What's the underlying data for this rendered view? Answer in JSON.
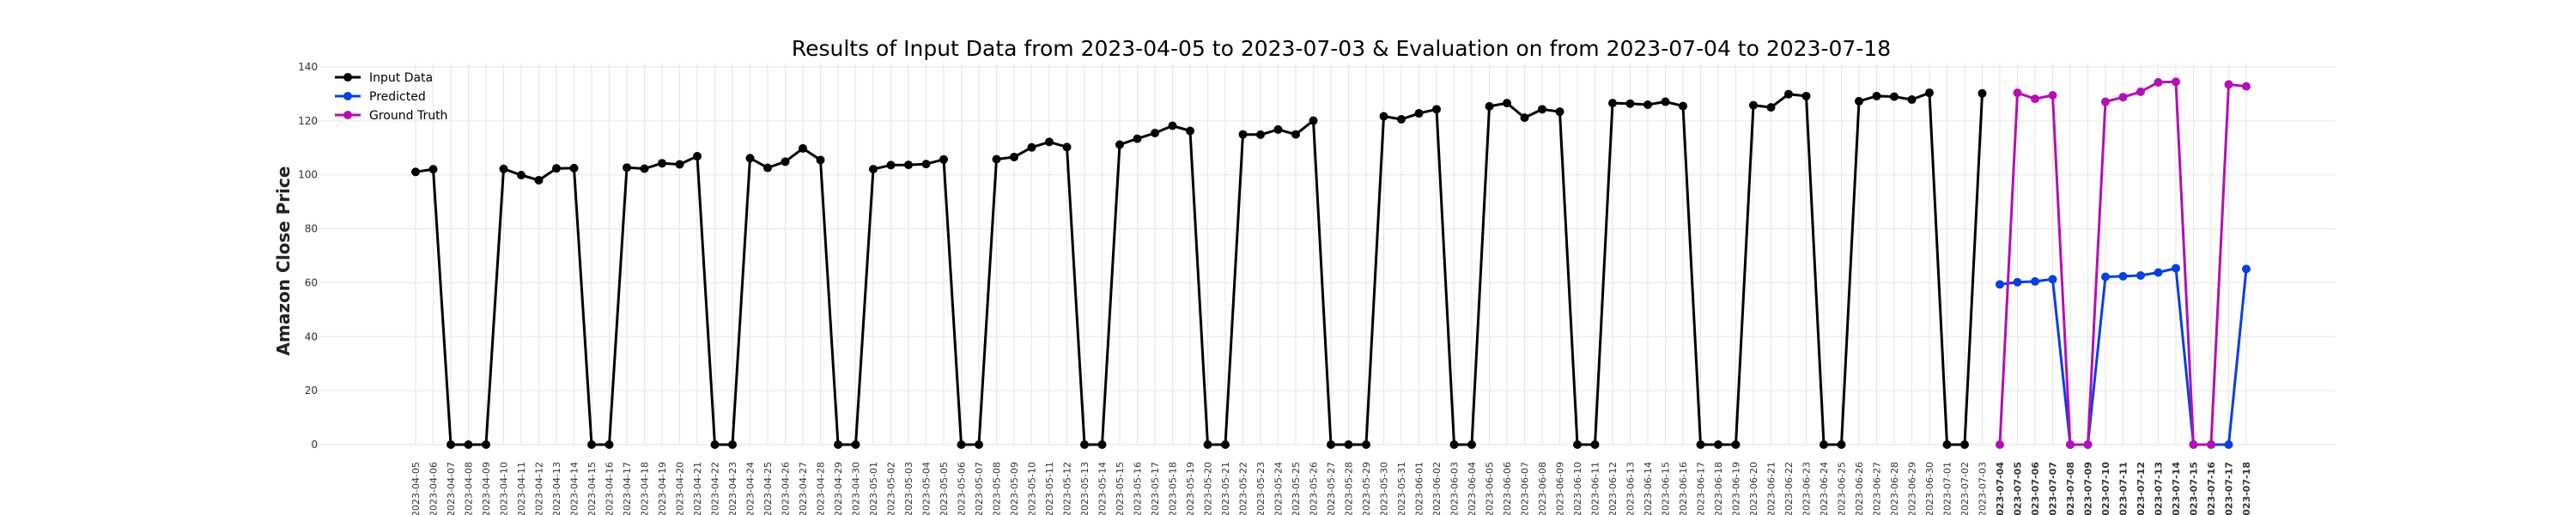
{
  "chart_data": {
    "type": "line",
    "title": "Results of Input Data from 2023-04-05 to 2023-07-03 & Evaluation on from 2023-07-04 to 2023-07-18",
    "xlabel": "",
    "ylabel": "Amazon Close Price",
    "ylim": [
      0,
      140
    ],
    "yticks": [
      0,
      20,
      40,
      60,
      80,
      100,
      120,
      140
    ],
    "grid": true,
    "legend_position": "top-left",
    "x_start": "2023-04-05",
    "tick_labels": [
      "2023-04-05",
      "2023-04-06",
      "2023-04-07",
      "2023-04-08",
      "2023-04-09",
      "2023-04-10",
      "2023-04-11",
      "2023-04-12",
      "2023-04-13",
      "2023-04-14",
      "2023-04-15",
      "2023-04-16",
      "2023-04-17",
      "2023-04-18",
      "2023-04-19",
      "2023-04-20",
      "2023-04-21",
      "2023-04-22",
      "2023-04-23",
      "2023-04-24",
      "2023-04-25",
      "2023-04-26",
      "2023-04-27",
      "2023-04-28",
      "2023-04-29",
      "2023-04-30",
      "2023-05-01",
      "2023-05-02",
      "2023-05-03",
      "2023-05-04",
      "2023-05-05",
      "2023-05-06",
      "2023-05-07",
      "2023-05-08",
      "2023-05-09",
      "2023-05-10",
      "2023-05-11",
      "2023-05-12",
      "2023-05-13",
      "2023-05-14",
      "2023-05-15",
      "2023-05-16",
      "2023-05-17",
      "2023-05-18",
      "2023-05-19",
      "2023-05-20",
      "2023-05-21",
      "2023-05-22",
      "2023-05-23",
      "2023-05-24",
      "2023-05-25",
      "2023-05-26",
      "2023-05-27",
      "2023-05-28",
      "2023-05-29",
      "2023-05-30",
      "2023-05-31",
      "2023-06-01",
      "2023-06-02",
      "2023-06-03",
      "2023-06-04",
      "2023-06-05",
      "2023-06-06",
      "2023-06-07",
      "2023-06-08",
      "2023-06-09",
      "2023-06-10",
      "2023-06-11",
      "2023-06-12",
      "2023-06-13",
      "2023-06-14",
      "2023-06-15",
      "2023-06-16",
      "2023-06-17",
      "2023-06-18",
      "2023-06-19",
      "2023-06-20",
      "2023-06-21",
      "2023-06-22",
      "2023-06-23",
      "2023-06-24",
      "2023-06-25",
      "2023-06-26",
      "2023-06-27",
      "2023-06-28",
      "2023-06-29",
      "2023-06-30",
      "2023-07-01",
      "2023-07-02",
      "2023-07-03",
      "2023-07-04",
      "2023-07-05",
      "2023-07-06",
      "2023-07-07",
      "2023-07-08",
      "2023-07-09",
      "2023-07-10",
      "2023-07-11",
      "2023-07-12",
      "2023-07-13",
      "2023-07-14",
      "2023-07-15",
      "2023-07-16",
      "2023-07-17",
      "2023-07-18"
    ],
    "bold_ticks_from": "2023-07-04",
    "series": [
      {
        "name": "Input Data",
        "color": "#000000",
        "x_from": "2023-04-05",
        "values": [
          101.1,
          102.1,
          0,
          0,
          0,
          102.2,
          99.9,
          98.0,
          102.4,
          102.5,
          0,
          0,
          102.7,
          102.3,
          104.3,
          103.9,
          106.9,
          0,
          0,
          106.2,
          102.6,
          104.9,
          109.8,
          105.5,
          0,
          0,
          102.1,
          103.6,
          103.7,
          104.0,
          105.7,
          0,
          0,
          105.8,
          106.6,
          110.2,
          112.2,
          110.3,
          0,
          0,
          111.2,
          113.4,
          115.5,
          118.2,
          116.3,
          0,
          0,
          115.0,
          114.9,
          116.8,
          115.0,
          120.1,
          0,
          0,
          0,
          121.7,
          120.6,
          122.8,
          124.3,
          0,
          0,
          125.4,
          126.6,
          121.2,
          124.3,
          123.4,
          0,
          0,
          126.6,
          126.4,
          126.0,
          127.1,
          125.5,
          0,
          0,
          0,
          125.8,
          125.0,
          129.9,
          129.2,
          0,
          0,
          127.3,
          129.2,
          129.0,
          127.9,
          130.4,
          0,
          0,
          130.2
        ]
      },
      {
        "name": "Predicted",
        "color": "#0a3fe0",
        "x_from": "2023-07-04",
        "values": [
          59.4,
          60.2,
          60.5,
          61.3,
          0,
          0,
          62.2,
          62.4,
          62.7,
          63.8,
          65.4,
          0,
          0,
          0,
          65.1
        ]
      },
      {
        "name": "Ground Truth",
        "color": "#b40fb4",
        "x_from": "2023-07-04",
        "values": [
          0,
          130.4,
          128.2,
          129.5,
          0,
          0,
          127.1,
          128.8,
          130.8,
          134.3,
          134.5,
          0,
          0,
          133.5,
          132.8
        ]
      }
    ]
  }
}
